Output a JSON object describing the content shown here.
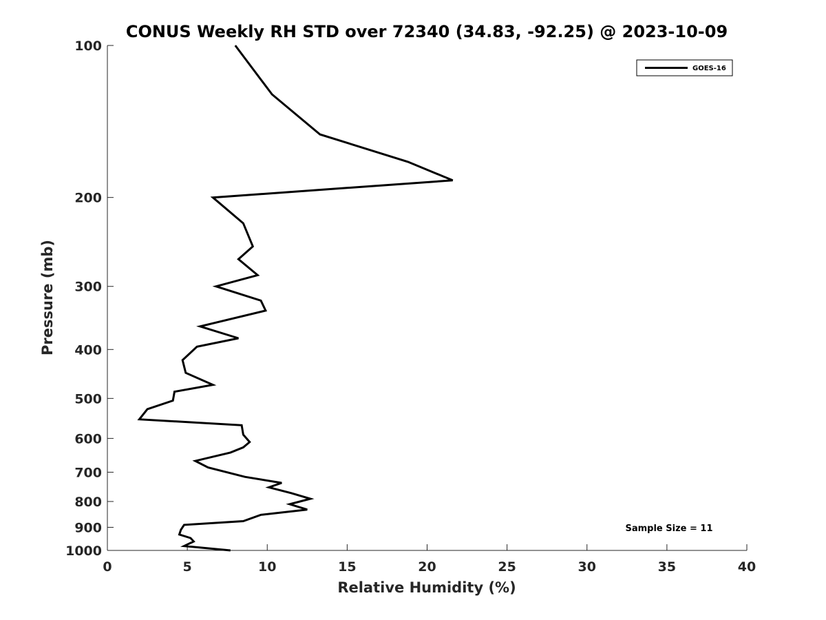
{
  "chart_data": {
    "type": "line",
    "title": "CONUS Weekly RH STD over 72340 (34.83, -92.25) @ 2023-10-09",
    "xlabel": "Relative Humidity (%)",
    "ylabel": "Pressure (mb)",
    "xlim": [
      0,
      40
    ],
    "ylim": [
      1000,
      100
    ],
    "y_scale": "log",
    "y_reversed": true,
    "grid": false,
    "legend_position": "top-right",
    "x_ticks": [
      0,
      5,
      10,
      15,
      20,
      25,
      30,
      35,
      40
    ],
    "x_tick_labels": [
      "0",
      "5",
      "10",
      "15",
      "20",
      "25",
      "30",
      "35",
      "40"
    ],
    "y_ticks": [
      100,
      200,
      300,
      400,
      500,
      600,
      700,
      800,
      900,
      1000
    ],
    "y_tick_labels": [
      "100",
      "200",
      "300",
      "400",
      "500",
      "600",
      "700",
      "800",
      "900",
      "1000"
    ],
    "series": [
      {
        "name": "GOES-16",
        "color": "#000000",
        "x": [
          8.0,
          10.3,
          13.3,
          18.8,
          21.6,
          6.6,
          8.5,
          9.1,
          8.2,
          9.4,
          6.8,
          9.6,
          9.9,
          5.8,
          8.2,
          5.6,
          4.7,
          4.9,
          6.6,
          4.2,
          4.1,
          2.5,
          2.0,
          8.4,
          8.5,
          8.9,
          8.5,
          7.7,
          5.5,
          6.3,
          8.6,
          10.9,
          10.1,
          11.5,
          12.7,
          11.4,
          12.5,
          9.6,
          8.5,
          4.8,
          4.6,
          4.5,
          5.2,
          5.4,
          4.8,
          7.7
        ],
        "y": [
          100,
          125,
          150,
          170,
          185,
          200,
          225,
          250,
          265,
          285,
          300,
          320,
          335,
          360,
          380,
          395,
          420,
          445,
          470,
          485,
          505,
          525,
          550,
          565,
          590,
          610,
          625,
          640,
          665,
          685,
          715,
          735,
          750,
          770,
          790,
          810,
          830,
          850,
          875,
          890,
          910,
          930,
          945,
          960,
          980,
          1000
        ]
      }
    ],
    "annotations": [
      "Sample Size = 11"
    ]
  }
}
